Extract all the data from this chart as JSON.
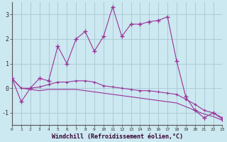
{
  "xlabel": "Windchill (Refroidissement éolien,°C)",
  "bg_color": "#cce8f0",
  "line_color": "#993399",
  "grid_color": "#aaccd8",
  "x": [
    0,
    1,
    2,
    3,
    4,
    5,
    6,
    7,
    8,
    9,
    10,
    11,
    12,
    13,
    14,
    15,
    16,
    17,
    18,
    19,
    20,
    21,
    22,
    23
  ],
  "y_main": [
    0.4,
    -0.55,
    0.0,
    0.4,
    0.3,
    1.7,
    1.0,
    2.0,
    2.3,
    1.5,
    2.1,
    3.3,
    2.1,
    2.6,
    2.6,
    2.7,
    2.75,
    2.9,
    1.1,
    -0.35,
    -0.9,
    -1.2,
    -1.0,
    -1.25
  ],
  "y_line2": [
    0.4,
    0.0,
    0.0,
    0.05,
    0.15,
    0.25,
    0.25,
    0.3,
    0.3,
    0.25,
    0.1,
    0.05,
    0.0,
    -0.05,
    -0.1,
    -0.1,
    -0.15,
    -0.2,
    -0.25,
    -0.45,
    -0.65,
    -0.9,
    -1.0,
    -1.2
  ],
  "y_line3": [
    0.4,
    0.0,
    -0.05,
    -0.1,
    -0.05,
    -0.05,
    -0.05,
    -0.05,
    -0.1,
    -0.15,
    -0.2,
    -0.25,
    -0.3,
    -0.35,
    -0.4,
    -0.45,
    -0.5,
    -0.55,
    -0.6,
    -0.75,
    -0.9,
    -1.05,
    -1.15,
    -1.3
  ],
  "xlim": [
    0,
    23
  ],
  "ylim": [
    -1.5,
    3.5
  ],
  "yticks": [
    -1,
    0,
    1,
    2,
    3
  ],
  "xticks": [
    0,
    1,
    2,
    3,
    4,
    5,
    6,
    7,
    8,
    9,
    10,
    11,
    12,
    13,
    14,
    15,
    16,
    17,
    18,
    19,
    20,
    21,
    22,
    23
  ]
}
